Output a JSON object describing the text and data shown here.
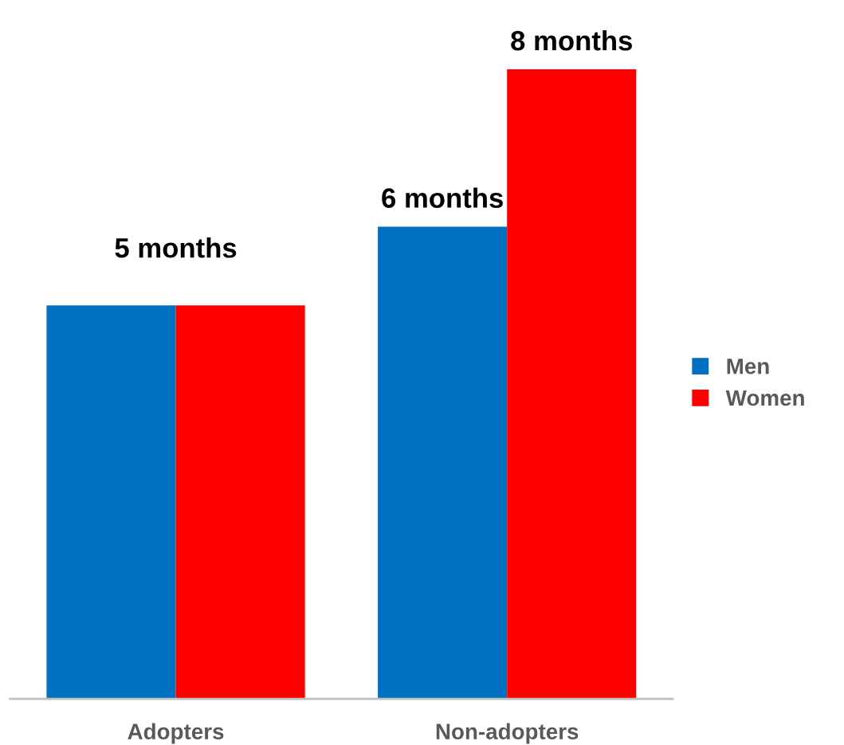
{
  "chart_data": {
    "type": "bar",
    "categories": [
      "Adopters",
      "Non-adopters"
    ],
    "series": [
      {
        "name": "Men",
        "color": "#0070c0",
        "values": [
          5,
          6
        ],
        "value_labels": [
          null,
          "6 months"
        ]
      },
      {
        "name": "Women",
        "color": "#ff0000",
        "values": [
          5,
          8
        ],
        "value_labels": [
          null,
          "8 months"
        ]
      }
    ],
    "annotations": [
      {
        "text": "5 months",
        "x": "Adopters",
        "y": 5
      }
    ],
    "legend": "right",
    "grid": false
  }
}
